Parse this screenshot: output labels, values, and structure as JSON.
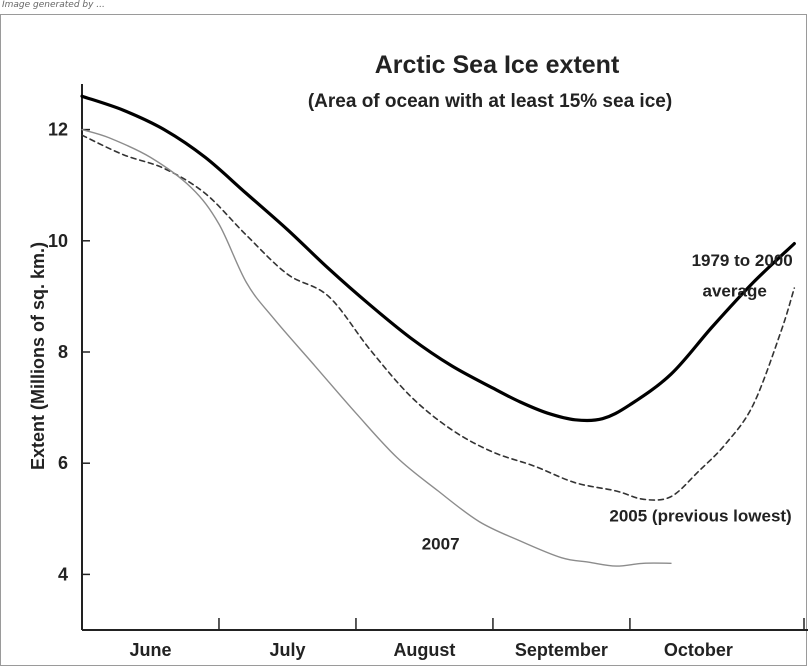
{
  "header_note": "Image generated by ...",
  "chart_data": {
    "type": "line",
    "title": "Arctic Sea Ice extent",
    "subtitle": "(Area of ocean with at least 15% sea ice)",
    "xlabel": "",
    "ylabel": "Extent (Millions of sq. km.)",
    "ylim": [
      3.0,
      13.0
    ],
    "xlim": [
      0,
      5.3
    ],
    "yticks": [
      4,
      6,
      8,
      10,
      12
    ],
    "months": [
      "June",
      "July",
      "August",
      "September",
      "October"
    ],
    "grid": false,
    "series": [
      {
        "name": "1979 to 2000 average",
        "style": "thick-solid",
        "color": "#000000",
        "x": [
          0.0,
          0.3,
          0.6,
          0.9,
          1.2,
          1.5,
          1.8,
          2.1,
          2.4,
          2.7,
          3.0,
          3.2,
          3.4,
          3.6,
          3.8,
          4.0,
          4.3,
          4.6,
          4.9,
          5.2
        ],
        "y": [
          12.6,
          12.35,
          12.0,
          11.5,
          10.85,
          10.2,
          9.5,
          8.85,
          8.25,
          7.75,
          7.35,
          7.1,
          6.9,
          6.78,
          6.8,
          7.05,
          7.6,
          8.45,
          9.25,
          9.95
        ]
      },
      {
        "name": "2005 (previous lowest)",
        "style": "dashed",
        "color": "#333333",
        "x": [
          0.0,
          0.3,
          0.6,
          0.9,
          1.2,
          1.5,
          1.8,
          2.1,
          2.4,
          2.7,
          3.0,
          3.3,
          3.6,
          3.9,
          4.1,
          4.3,
          4.5,
          4.7,
          4.9,
          5.1,
          5.2
        ],
        "y": [
          11.9,
          11.55,
          11.3,
          10.85,
          10.1,
          9.4,
          9.0,
          8.05,
          7.2,
          6.6,
          6.2,
          5.95,
          5.65,
          5.5,
          5.35,
          5.4,
          5.85,
          6.35,
          7.05,
          8.35,
          9.15
        ]
      },
      {
        "name": "2007",
        "style": "thin-solid",
        "color": "#8c8c8c",
        "x": [
          0.0,
          0.2,
          0.5,
          0.8,
          1.0,
          1.2,
          1.4,
          1.7,
          2.0,
          2.3,
          2.6,
          2.9,
          3.2,
          3.5,
          3.7,
          3.9,
          4.1,
          4.3
        ],
        "y": [
          12.0,
          11.85,
          11.5,
          10.95,
          10.3,
          9.25,
          8.6,
          7.75,
          6.9,
          6.1,
          5.5,
          4.95,
          4.6,
          4.3,
          4.22,
          4.15,
          4.2,
          4.2
        ]
      }
    ],
    "annotations": [
      {
        "text": "1979 to 2000",
        "x": 4.45,
        "y": 9.55
      },
      {
        "text": "average",
        "x": 4.53,
        "y": 9.0
      },
      {
        "text": "2005 (previous lowest)",
        "x": 3.85,
        "y": 4.95
      },
      {
        "text": "2007",
        "x": 2.48,
        "y": 4.45
      }
    ]
  }
}
